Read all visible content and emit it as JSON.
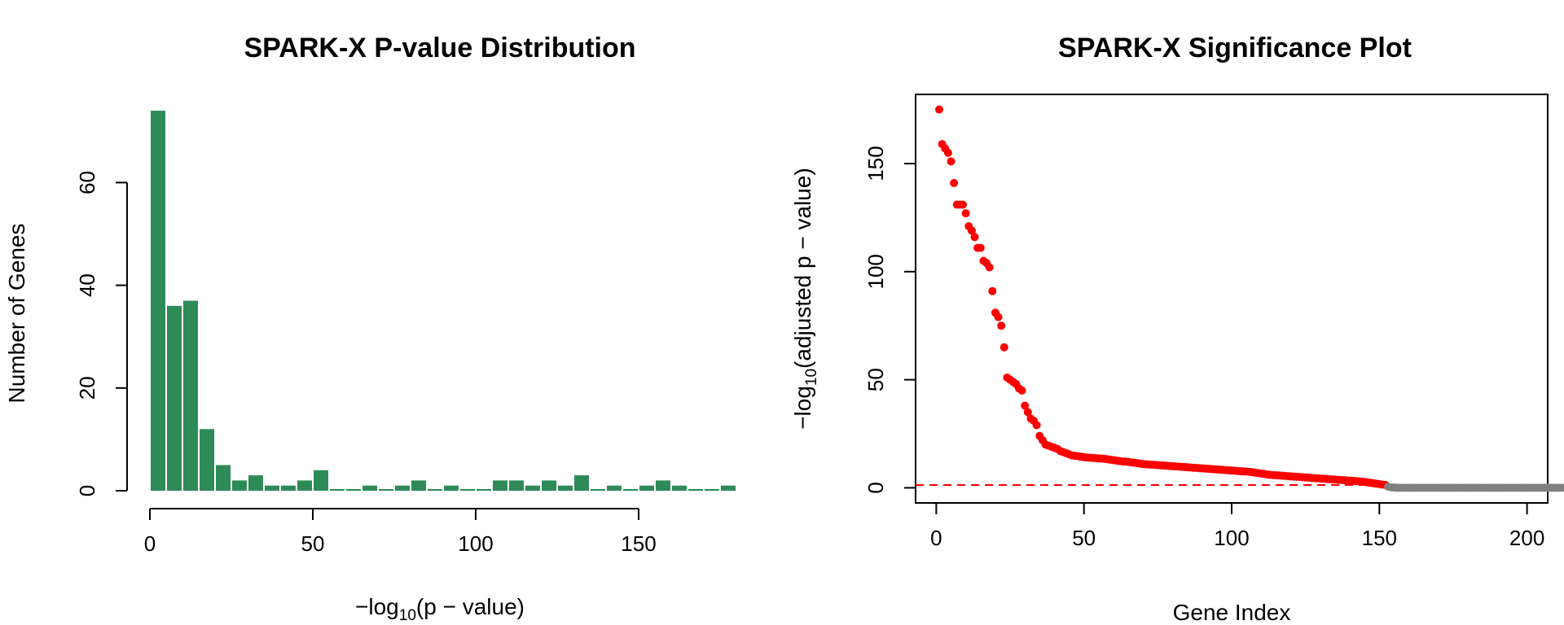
{
  "chart_data": [
    {
      "type": "bar",
      "title": "SPARK-X P-value Distribution",
      "xlabel": "−log10(p − value)",
      "xlabel_parts": {
        "prefix": "−log",
        "sub": "10",
        "suffix": "(p − value)"
      },
      "ylabel": "Number of Genes",
      "bin_width": 5,
      "xlim": [
        0,
        180
      ],
      "ylim": [
        0,
        74
      ],
      "xticks": [
        0,
        50,
        100,
        150
      ],
      "yticks": [
        0,
        20,
        40,
        60
      ],
      "bar_color": "#2e8b57",
      "bins": [
        {
          "start": 0,
          "count": 74
        },
        {
          "start": 5,
          "count": 36
        },
        {
          "start": 10,
          "count": 37
        },
        {
          "start": 15,
          "count": 12
        },
        {
          "start": 20,
          "count": 5
        },
        {
          "start": 25,
          "count": 2
        },
        {
          "start": 30,
          "count": 3
        },
        {
          "start": 35,
          "count": 1
        },
        {
          "start": 40,
          "count": 1
        },
        {
          "start": 45,
          "count": 2
        },
        {
          "start": 50,
          "count": 4
        },
        {
          "start": 55,
          "count": 0
        },
        {
          "start": 60,
          "count": 0
        },
        {
          "start": 65,
          "count": 1
        },
        {
          "start": 70,
          "count": 0
        },
        {
          "start": 75,
          "count": 1
        },
        {
          "start": 80,
          "count": 2
        },
        {
          "start": 85,
          "count": 0
        },
        {
          "start": 90,
          "count": 1
        },
        {
          "start": 95,
          "count": 0
        },
        {
          "start": 100,
          "count": 0
        },
        {
          "start": 105,
          "count": 2
        },
        {
          "start": 110,
          "count": 2
        },
        {
          "start": 115,
          "count": 1
        },
        {
          "start": 120,
          "count": 2
        },
        {
          "start": 125,
          "count": 1
        },
        {
          "start": 130,
          "count": 3
        },
        {
          "start": 135,
          "count": 0
        },
        {
          "start": 140,
          "count": 1
        },
        {
          "start": 145,
          "count": 0
        },
        {
          "start": 150,
          "count": 1
        },
        {
          "start": 155,
          "count": 2
        },
        {
          "start": 160,
          "count": 1
        },
        {
          "start": 165,
          "count": 0
        },
        {
          "start": 170,
          "count": 0
        },
        {
          "start": 175,
          "count": 1
        }
      ]
    },
    {
      "type": "scatter",
      "title": "SPARK-X Significance Plot",
      "xlabel": "Gene Index",
      "ylabel": "−log10(adjusted p − value)",
      "ylabel_parts": {
        "prefix": "−log",
        "sub": "10",
        "suffix": "(adjusted p − value)"
      },
      "xlim": [
        -7,
        207
      ],
      "ylim": [
        -7,
        182
      ],
      "xticks": [
        0,
        50,
        100,
        150,
        200
      ],
      "yticks": [
        0,
        50,
        100,
        150
      ],
      "threshold": 1.3,
      "threshold_color": "#ff0000",
      "significant_color": "#ff0000",
      "nonsignificant_color": "#808080",
      "y": [
        175,
        159,
        157,
        155,
        151,
        141,
        131,
        131,
        131,
        127,
        121,
        119,
        116,
        111,
        111,
        105,
        104,
        102,
        91,
        81,
        79,
        75,
        65,
        51,
        50,
        49,
        48,
        46,
        45,
        38,
        35,
        32,
        31,
        29,
        24,
        22,
        20,
        19.5,
        19,
        18.5,
        18,
        17,
        16.5,
        16,
        15.5,
        15,
        14.8,
        14.6,
        14.4,
        14.2,
        14,
        13.9,
        13.8,
        13.7,
        13.6,
        13.5,
        13.4,
        13.2,
        13,
        12.8,
        12.6,
        12.4,
        12.2,
        12.1,
        12,
        11.8,
        11.6,
        11.4,
        11.2,
        11,
        10.9,
        10.8,
        10.7,
        10.6,
        10.5,
        10.4,
        10.3,
        10.2,
        10.1,
        10,
        9.9,
        9.8,
        9.7,
        9.6,
        9.5,
        9.4,
        9.3,
        9.2,
        9.1,
        9,
        8.9,
        8.8,
        8.7,
        8.6,
        8.5,
        8.4,
        8.3,
        8.2,
        8.1,
        8,
        7.9,
        7.8,
        7.7,
        7.6,
        7.5,
        7.4,
        7.2,
        7,
        6.8,
        6.6,
        6.4,
        6.2,
        6,
        5.9,
        5.8,
        5.7,
        5.6,
        5.5,
        5.4,
        5.3,
        5.2,
        5.1,
        5,
        4.9,
        4.8,
        4.7,
        4.6,
        4.5,
        4.4,
        4.3,
        4.2,
        4.1,
        4,
        3.9,
        3.8,
        3.7,
        3.6,
        3.5,
        3.4,
        3.3,
        3.2,
        3.1,
        3,
        2.9,
        2.7,
        2.5,
        2.3,
        2.1,
        1.9,
        1.7,
        1.5,
        1.35,
        0.5,
        0.2,
        0.1,
        0,
        0,
        0,
        0,
        0,
        0,
        0,
        0,
        0,
        0,
        0,
        0,
        0,
        0,
        0,
        0,
        0,
        0,
        0,
        0,
        0,
        0,
        0,
        0,
        0,
        0,
        0,
        0,
        0,
        0,
        0,
        0,
        0,
        0,
        0,
        0,
        0,
        0,
        0,
        0,
        0,
        0,
        0,
        0,
        0,
        0,
        0,
        0,
        0,
        0,
        0,
        0,
        0,
        0,
        0,
        0,
        0
      ]
    }
  ]
}
